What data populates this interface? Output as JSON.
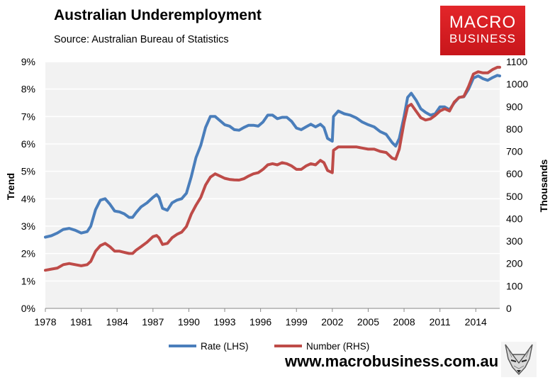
{
  "header": {
    "title": "Australian Underemployment",
    "subtitle": "Source: Australian Bureau of Statistics"
  },
  "logo": {
    "line1": "MACRO",
    "line2": "BUSINESS"
  },
  "footer": {
    "url": "www.macrobusiness.com.au",
    "fox_icon": "fox-sketch-icon"
  },
  "colors": {
    "rate": "#4a7ebb",
    "number": "#be4b48",
    "plot_bg": "#f2f2f2",
    "grid": "#ffffff"
  },
  "chart_data": {
    "type": "line",
    "xlabel": "",
    "ylabel": "Trend",
    "y2label": "Thousands",
    "xlim": [
      1978,
      2016
    ],
    "ylim": [
      0,
      9
    ],
    "y2lim": [
      0,
      1100
    ],
    "x_ticks": [
      "1978",
      "1981",
      "1984",
      "1987",
      "1990",
      "1993",
      "1996",
      "1999",
      "2002",
      "2005",
      "2008",
      "2011",
      "2014"
    ],
    "y_ticks": [
      "0%",
      "1%",
      "2%",
      "3%",
      "4%",
      "5%",
      "6%",
      "7%",
      "8%",
      "9%"
    ],
    "y2_ticks": [
      "0",
      "100",
      "200",
      "300",
      "400",
      "500",
      "600",
      "700",
      "800",
      "900",
      "1000",
      "1100"
    ],
    "grid": true,
    "legend": "bottom",
    "series": [
      {
        "name": "Rate (LHS)",
        "axis": "left",
        "points": [
          [
            1978,
            2.6
          ],
          [
            1978.5,
            2.65
          ],
          [
            1979,
            2.75
          ],
          [
            1979.5,
            2.88
          ],
          [
            1980,
            2.92
          ],
          [
            1980.5,
            2.85
          ],
          [
            1981,
            2.75
          ],
          [
            1981.5,
            2.8
          ],
          [
            1981.8,
            3.0
          ],
          [
            1982.2,
            3.6
          ],
          [
            1982.6,
            3.95
          ],
          [
            1983,
            4.0
          ],
          [
            1983.4,
            3.8
          ],
          [
            1983.8,
            3.55
          ],
          [
            1984.2,
            3.52
          ],
          [
            1984.6,
            3.45
          ],
          [
            1985,
            3.32
          ],
          [
            1985.3,
            3.32
          ],
          [
            1985.6,
            3.5
          ],
          [
            1986,
            3.7
          ],
          [
            1986.5,
            3.85
          ],
          [
            1987,
            4.05
          ],
          [
            1987.3,
            4.15
          ],
          [
            1987.5,
            4.05
          ],
          [
            1987.8,
            3.65
          ],
          [
            1988.2,
            3.58
          ],
          [
            1988.6,
            3.85
          ],
          [
            1989,
            3.95
          ],
          [
            1989.4,
            4.0
          ],
          [
            1989.8,
            4.2
          ],
          [
            1990.2,
            4.8
          ],
          [
            1990.6,
            5.5
          ],
          [
            1991,
            5.95
          ],
          [
            1991.4,
            6.6
          ],
          [
            1991.8,
            7.0
          ],
          [
            1992.2,
            7.0
          ],
          [
            1992.6,
            6.85
          ],
          [
            1993,
            6.7
          ],
          [
            1993.4,
            6.65
          ],
          [
            1993.8,
            6.52
          ],
          [
            1994.2,
            6.5
          ],
          [
            1994.6,
            6.6
          ],
          [
            1995,
            6.68
          ],
          [
            1995.4,
            6.68
          ],
          [
            1995.8,
            6.65
          ],
          [
            1996.2,
            6.8
          ],
          [
            1996.6,
            7.05
          ],
          [
            1997,
            7.05
          ],
          [
            1997.4,
            6.92
          ],
          [
            1997.8,
            6.97
          ],
          [
            1998.2,
            6.97
          ],
          [
            1998.6,
            6.82
          ],
          [
            1999,
            6.58
          ],
          [
            1999.4,
            6.52
          ],
          [
            1999.8,
            6.62
          ],
          [
            2000.2,
            6.72
          ],
          [
            2000.6,
            6.62
          ],
          [
            2001,
            6.72
          ],
          [
            2001.3,
            6.6
          ],
          [
            2001.6,
            6.2
          ],
          [
            2002,
            6.1
          ],
          [
            2002.1,
            7.0
          ],
          [
            2002.5,
            7.2
          ],
          [
            2003,
            7.1
          ],
          [
            2003.5,
            7.05
          ],
          [
            2004,
            6.95
          ],
          [
            2004.5,
            6.8
          ],
          [
            2005,
            6.7
          ],
          [
            2005.5,
            6.62
          ],
          [
            2006,
            6.45
          ],
          [
            2006.5,
            6.35
          ],
          [
            2007,
            6.05
          ],
          [
            2007.3,
            5.92
          ],
          [
            2007.6,
            6.2
          ],
          [
            2008,
            7.0
          ],
          [
            2008.3,
            7.7
          ],
          [
            2008.6,
            7.85
          ],
          [
            2009,
            7.6
          ],
          [
            2009.4,
            7.28
          ],
          [
            2009.8,
            7.15
          ],
          [
            2010.2,
            7.05
          ],
          [
            2010.6,
            7.1
          ],
          [
            2011,
            7.35
          ],
          [
            2011.4,
            7.35
          ],
          [
            2011.8,
            7.25
          ],
          [
            2012.2,
            7.5
          ],
          [
            2012.6,
            7.7
          ],
          [
            2013,
            7.72
          ],
          [
            2013.4,
            8.0
          ],
          [
            2013.8,
            8.4
          ],
          [
            2014.2,
            8.48
          ],
          [
            2014.6,
            8.38
          ],
          [
            2015,
            8.32
          ],
          [
            2015.4,
            8.42
          ],
          [
            2015.8,
            8.5
          ],
          [
            2016,
            8.48
          ]
        ]
      },
      {
        "name": "Number (RHS)",
        "axis": "right",
        "points": [
          [
            1978,
            170
          ],
          [
            1978.5,
            175
          ],
          [
            1979,
            180
          ],
          [
            1979.5,
            195
          ],
          [
            1980,
            200
          ],
          [
            1980.5,
            195
          ],
          [
            1981,
            190
          ],
          [
            1981.5,
            195
          ],
          [
            1981.8,
            210
          ],
          [
            1982.2,
            255
          ],
          [
            1982.6,
            280
          ],
          [
            1983,
            290
          ],
          [
            1983.4,
            275
          ],
          [
            1983.8,
            255
          ],
          [
            1984.2,
            255
          ],
          [
            1984.6,
            250
          ],
          [
            1985,
            245
          ],
          [
            1985.3,
            245
          ],
          [
            1985.6,
            260
          ],
          [
            1986,
            275
          ],
          [
            1986.5,
            295
          ],
          [
            1987,
            320
          ],
          [
            1987.3,
            325
          ],
          [
            1987.5,
            315
          ],
          [
            1987.8,
            285
          ],
          [
            1988.2,
            290
          ],
          [
            1988.6,
            315
          ],
          [
            1989,
            330
          ],
          [
            1989.4,
            340
          ],
          [
            1989.8,
            365
          ],
          [
            1990.2,
            420
          ],
          [
            1990.6,
            460
          ],
          [
            1991,
            495
          ],
          [
            1991.4,
            550
          ],
          [
            1991.8,
            585
          ],
          [
            1992.2,
            600
          ],
          [
            1992.6,
            590
          ],
          [
            1993,
            580
          ],
          [
            1993.4,
            575
          ],
          [
            1993.8,
            573
          ],
          [
            1994.2,
            572
          ],
          [
            1994.6,
            578
          ],
          [
            1995,
            590
          ],
          [
            1995.4,
            600
          ],
          [
            1995.8,
            605
          ],
          [
            1996.2,
            620
          ],
          [
            1996.6,
            640
          ],
          [
            1997,
            645
          ],
          [
            1997.4,
            640
          ],
          [
            1997.8,
            650
          ],
          [
            1998.2,
            645
          ],
          [
            1998.6,
            635
          ],
          [
            1999,
            620
          ],
          [
            1999.4,
            620
          ],
          [
            1999.8,
            635
          ],
          [
            2000.2,
            645
          ],
          [
            2000.6,
            640
          ],
          [
            2001,
            660
          ],
          [
            2001.3,
            650
          ],
          [
            2001.6,
            615
          ],
          [
            2002,
            605
          ],
          [
            2002.1,
            705
          ],
          [
            2002.5,
            720
          ],
          [
            2003,
            720
          ],
          [
            2003.5,
            720
          ],
          [
            2004,
            720
          ],
          [
            2004.5,
            715
          ],
          [
            2005,
            710
          ],
          [
            2005.5,
            710
          ],
          [
            2006,
            700
          ],
          [
            2006.5,
            695
          ],
          [
            2007,
            670
          ],
          [
            2007.3,
            665
          ],
          [
            2007.6,
            710
          ],
          [
            2008,
            830
          ],
          [
            2008.3,
            900
          ],
          [
            2008.6,
            910
          ],
          [
            2009,
            880
          ],
          [
            2009.4,
            850
          ],
          [
            2009.8,
            840
          ],
          [
            2010.2,
            845
          ],
          [
            2010.6,
            860
          ],
          [
            2011,
            880
          ],
          [
            2011.4,
            890
          ],
          [
            2011.8,
            880
          ],
          [
            2012.2,
            920
          ],
          [
            2012.6,
            940
          ],
          [
            2013,
            945
          ],
          [
            2013.4,
            990
          ],
          [
            2013.8,
            1045
          ],
          [
            2014.2,
            1055
          ],
          [
            2014.6,
            1050
          ],
          [
            2015,
            1050
          ],
          [
            2015.4,
            1065
          ],
          [
            2015.8,
            1075
          ],
          [
            2016,
            1075
          ]
        ]
      }
    ]
  }
}
